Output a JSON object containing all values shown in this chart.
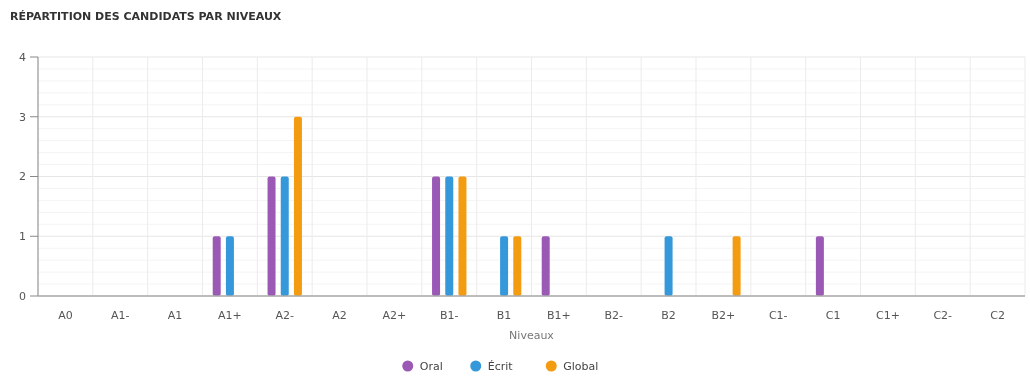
{
  "chart_data": {
    "type": "bar",
    "title": "RÉPARTITION DES CANDIDATS PAR NIVEAUX",
    "xlabel": "Niveaux",
    "categories": [
      "A0",
      "A1-",
      "A1",
      "A1+",
      "A2-",
      "A2",
      "A2+",
      "B1-",
      "B1",
      "B1+",
      "B2-",
      "B2",
      "B2+",
      "C1-",
      "C1",
      "C1+",
      "C2-",
      "C2"
    ],
    "series": [
      {
        "name": "Oral",
        "color": "#9b59b6",
        "values": [
          0,
          0,
          0,
          1,
          2,
          0,
          0,
          2,
          0,
          1,
          0,
          0,
          0,
          0,
          1,
          0,
          0,
          0
        ]
      },
      {
        "name": "Écrit",
        "color": "#3498db",
        "values": [
          0,
          0,
          0,
          1,
          2,
          0,
          0,
          2,
          1,
          0,
          0,
          1,
          0,
          0,
          0,
          0,
          0,
          0
        ]
      },
      {
        "name": "Global",
        "color": "#f39c12",
        "values": [
          0,
          0,
          0,
          0,
          3,
          0,
          0,
          2,
          1,
          0,
          0,
          0,
          1,
          0,
          0,
          0,
          0,
          0
        ]
      }
    ],
    "ylim": [
      0,
      4
    ],
    "yticks": [
      0,
      1,
      2,
      3,
      4
    ],
    "grid": true,
    "legend": "bottom"
  }
}
